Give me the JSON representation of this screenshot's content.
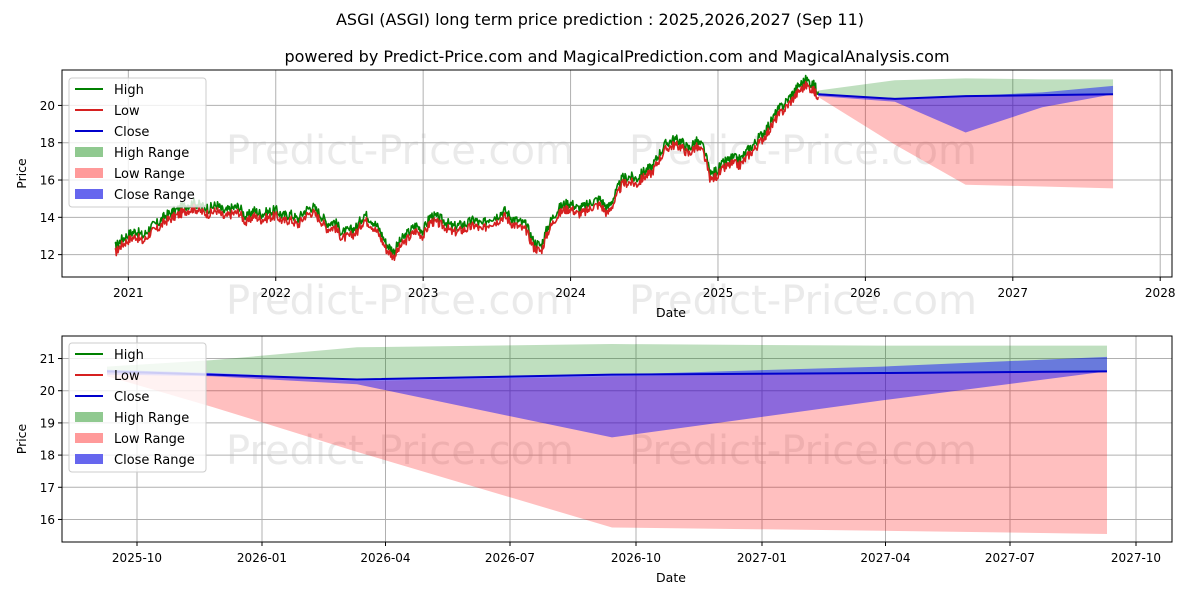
{
  "title": "ASGI (ASGI) long term price prediction : 2025,2026,2027 (Sep 11)",
  "subtitle": "powered by Predict-Price.com and MagicalPrediction.com and MagicalAnalysis.com",
  "watermark": "Predict-Price.com",
  "legend": [
    {
      "label": "High",
      "kind": "line",
      "color": "#008000"
    },
    {
      "label": "Low",
      "kind": "line",
      "color": "#d62020"
    },
    {
      "label": "Close",
      "kind": "line",
      "color": "#0000cc"
    },
    {
      "label": "High Range",
      "kind": "patch",
      "color": "#90c990"
    },
    {
      "label": "Low Range",
      "kind": "patch",
      "color": "#ff9a9a"
    },
    {
      "label": "Close Range",
      "kind": "patch",
      "color": "#6666ee"
    }
  ],
  "chart_data": [
    {
      "type": "line",
      "title": "ASGI (ASGI) long term price prediction : 2025,2026,2027 (Sep 11)",
      "xlabel": "Date",
      "ylabel": "Price",
      "grid": true,
      "legend_position": "top-left",
      "xlim": [
        2020.55,
        2028.08
      ],
      "ylim": [
        10.8,
        21.9
      ],
      "x_ticks": [
        2021,
        2022,
        2023,
        2024,
        2025,
        2026,
        2027,
        2028
      ],
      "x_tick_labels": [
        "2021",
        "2022",
        "2023",
        "2024",
        "2025",
        "2026",
        "2027",
        "2028"
      ],
      "y_ticks": [
        12,
        14,
        16,
        18,
        20
      ],
      "y_tick_labels": [
        "12",
        "14",
        "16",
        "18",
        "20"
      ],
      "history": {
        "x": [
          2020.91,
          2020.95,
          2021.0,
          2021.05,
          2021.1,
          2021.15,
          2021.2,
          2021.25,
          2021.3,
          2021.35,
          2021.4,
          2021.45,
          2021.5,
          2021.55,
          2021.6,
          2021.65,
          2021.7,
          2021.75,
          2021.8,
          2021.85,
          2021.9,
          2021.95,
          2022.0,
          2022.05,
          2022.1,
          2022.15,
          2022.2,
          2022.25,
          2022.3,
          2022.35,
          2022.4,
          2022.45,
          2022.5,
          2022.55,
          2022.6,
          2022.65,
          2022.7,
          2022.75,
          2022.8,
          2022.85,
          2022.9,
          2022.95,
          2023.0,
          2023.05,
          2023.1,
          2023.15,
          2023.2,
          2023.25,
          2023.3,
          2023.35,
          2023.4,
          2023.45,
          2023.5,
          2023.55,
          2023.6,
          2023.65,
          2023.7,
          2023.75,
          2023.8,
          2023.85,
          2023.9,
          2023.95,
          2024.0,
          2024.05,
          2024.1,
          2024.15,
          2024.2,
          2024.25,
          2024.3,
          2024.35,
          2024.4,
          2024.45,
          2024.5,
          2024.55,
          2024.6,
          2024.65,
          2024.7,
          2024.75,
          2024.8,
          2024.85,
          2024.9,
          2024.95,
          2025.0,
          2025.05,
          2025.1,
          2025.15,
          2025.2,
          2025.25,
          2025.3,
          2025.35,
          2025.4,
          2025.45,
          2025.5,
          2025.55,
          2025.6,
          2025.65,
          2025.68
        ],
        "close": [
          12.2,
          12.6,
          12.9,
          13.1,
          12.8,
          13.3,
          13.5,
          13.9,
          14.1,
          14.3,
          14.5,
          14.6,
          14.4,
          14.3,
          14.5,
          14.1,
          14.3,
          14.4,
          13.8,
          14.2,
          14.0,
          14.1,
          14.2,
          13.9,
          14.0,
          13.7,
          14.2,
          14.4,
          14.0,
          13.5,
          13.6,
          13.0,
          13.1,
          13.3,
          14.0,
          13.7,
          13.2,
          12.4,
          12.0,
          12.6,
          13.0,
          13.4,
          13.1,
          13.9,
          13.8,
          13.6,
          13.3,
          13.4,
          13.5,
          13.7,
          13.4,
          13.8,
          13.9,
          14.2,
          13.8,
          13.6,
          13.4,
          12.5,
          12.3,
          13.4,
          14.1,
          14.5,
          14.6,
          14.3,
          14.4,
          14.7,
          14.8,
          14.3,
          15.0,
          15.9,
          16.0,
          15.9,
          16.3,
          16.5,
          17.2,
          17.8,
          18.0,
          17.9,
          17.5,
          17.9,
          17.6,
          16.1,
          16.4,
          16.8,
          17.0,
          16.9,
          17.4,
          17.8,
          18.3,
          18.8,
          19.5,
          19.9,
          20.4,
          20.9,
          21.2,
          20.9,
          20.6
        ]
      },
      "forecast": {
        "x": [
          2025.68,
          2026.2,
          2026.68,
          2027.2,
          2027.68
        ],
        "close": [
          20.6,
          20.35,
          20.5,
          20.55,
          20.6
        ],
        "high_range": [
          [
            20.6,
            20.8
          ],
          [
            20.3,
            21.35
          ],
          [
            20.5,
            21.45
          ],
          [
            20.55,
            21.4
          ],
          [
            20.6,
            21.4
          ]
        ],
        "low_range": [
          [
            20.45,
            20.6
          ],
          [
            17.9,
            20.3
          ],
          [
            15.75,
            20.45
          ],
          [
            15.65,
            20.55
          ],
          [
            15.55,
            20.6
          ]
        ],
        "close_range": [
          [
            20.5,
            20.65
          ],
          [
            20.2,
            20.35
          ],
          [
            18.55,
            20.5
          ],
          [
            19.9,
            20.7
          ],
          [
            20.6,
            21.05
          ]
        ]
      }
    },
    {
      "type": "line",
      "title": "",
      "xlabel": "Date",
      "ylabel": "Price",
      "grid": true,
      "legend_position": "top-left",
      "xlim": [
        2025.6,
        2027.82
      ],
      "ylim": [
        15.3,
        21.7
      ],
      "x_ticks": [
        2025.75,
        2026.0,
        2026.247,
        2026.496,
        2026.748,
        2027.0,
        2027.247,
        2027.496,
        2027.748
      ],
      "x_tick_labels": [
        "2025-10",
        "2026-01",
        "2026-04",
        "2026-07",
        "2026-10",
        "2027-01",
        "2027-04",
        "2027-07",
        "2027-10"
      ],
      "y_ticks": [
        16,
        17,
        18,
        19,
        20,
        21
      ],
      "y_tick_labels": [
        "16",
        "17",
        "18",
        "19",
        "20",
        "21"
      ],
      "forecast": {
        "x": [
          2025.69,
          2025.9,
          2026.19,
          2026.7,
          2027.24,
          2027.69
        ],
        "close": [
          20.6,
          20.5,
          20.35,
          20.5,
          20.55,
          20.6
        ],
        "high_range": [
          [
            20.6,
            20.75
          ],
          [
            20.55,
            20.95
          ],
          [
            20.35,
            21.35
          ],
          [
            20.5,
            21.45
          ],
          [
            20.55,
            21.4
          ],
          [
            20.6,
            21.4
          ]
        ],
        "low_range": [
          [
            20.45,
            20.6
          ],
          [
            19.5,
            20.5
          ],
          [
            18.1,
            20.3
          ],
          [
            15.75,
            20.45
          ],
          [
            15.65,
            20.55
          ],
          [
            15.55,
            20.6
          ]
        ],
        "close_range": [
          [
            20.5,
            20.65
          ],
          [
            20.45,
            20.55
          ],
          [
            20.2,
            20.35
          ],
          [
            18.55,
            20.5
          ],
          [
            19.7,
            20.75
          ],
          [
            20.6,
            21.05
          ]
        ]
      }
    }
  ]
}
